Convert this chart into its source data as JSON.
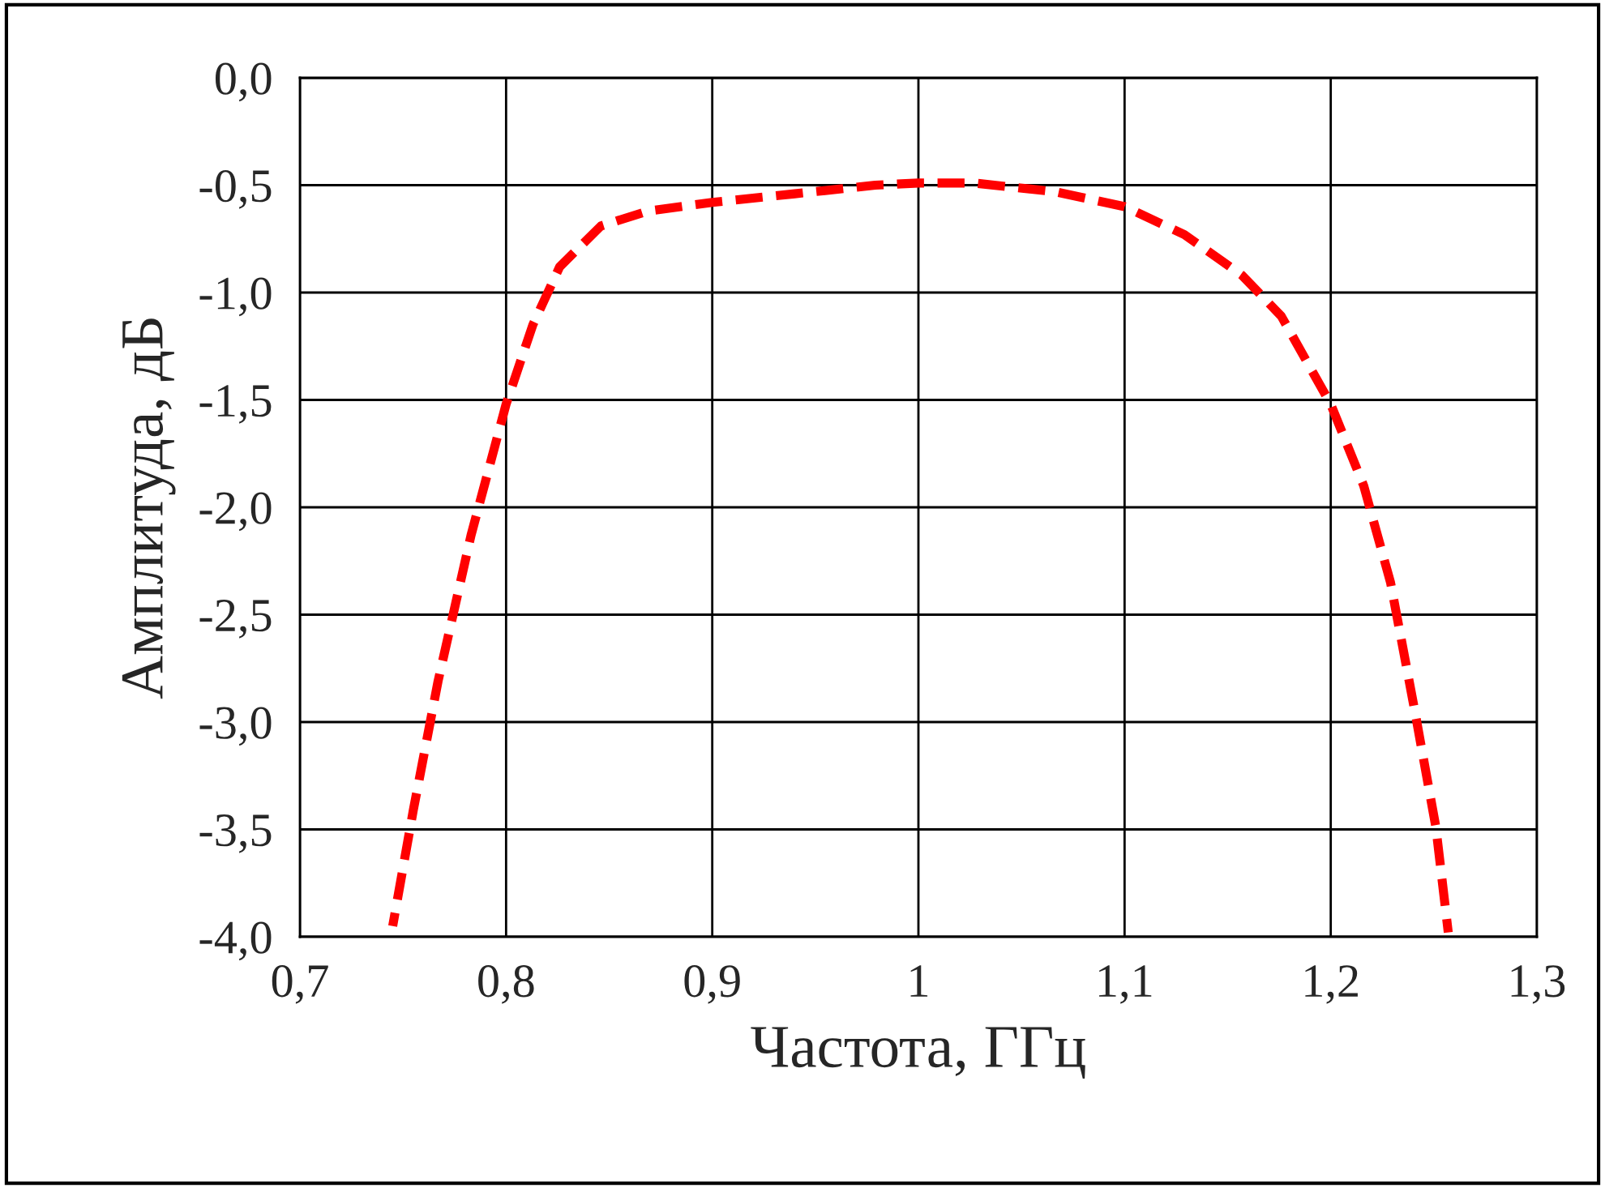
{
  "chart_data": {
    "type": "line",
    "xlabel": "Частота, ГГц",
    "ylabel": "Амплитуда, дБ",
    "xlim": [
      0.7,
      1.3
    ],
    "ylim": [
      -4.0,
      0.0
    ],
    "xticks": [
      {
        "value": 0.7,
        "label": "0,7"
      },
      {
        "value": 0.8,
        "label": "0,8"
      },
      {
        "value": 0.9,
        "label": "0,9"
      },
      1,
      {
        "value": 1.1,
        "label": "1,1"
      },
      {
        "value": 1.2,
        "label": "1,2"
      },
      {
        "value": 1.3,
        "label": "1,3"
      }
    ],
    "yticks": [
      {
        "value": 0.0,
        "label": "0,0"
      },
      {
        "value": -0.5,
        "label": "-0,5"
      },
      {
        "value": -1.0,
        "label": "-1,0"
      },
      {
        "value": -1.5,
        "label": "-1,5"
      },
      {
        "value": -2.0,
        "label": "-2,0"
      },
      {
        "value": -2.5,
        "label": "-2,5"
      },
      {
        "value": -3.0,
        "label": "-3,0"
      },
      {
        "value": -3.5,
        "label": "-3,5"
      },
      {
        "value": -4.0,
        "label": "-4,0"
      }
    ],
    "grid": true,
    "legend": false,
    "marker": "none",
    "line_style": "dashed",
    "series": [
      {
        "color": "#ff0000",
        "x": [
          0.745,
          0.755,
          0.767,
          0.783,
          0.8,
          0.813,
          0.826,
          0.846,
          0.869,
          0.9,
          0.94,
          0.979,
          1.0,
          1.027,
          1.066,
          1.1,
          1.129,
          1.157,
          1.176,
          1.2,
          1.216,
          1.229,
          1.241,
          1.251,
          1.257
        ],
        "values": [
          -3.95,
          -3.41,
          -2.81,
          -2.13,
          -1.52,
          -1.15,
          -0.88,
          -0.69,
          -0.62,
          -0.58,
          -0.54,
          -0.5,
          -0.49,
          -0.49,
          -0.53,
          -0.6,
          -0.73,
          -0.92,
          -1.11,
          -1.52,
          -1.9,
          -2.35,
          -2.96,
          -3.49,
          -3.98
        ]
      }
    ]
  }
}
